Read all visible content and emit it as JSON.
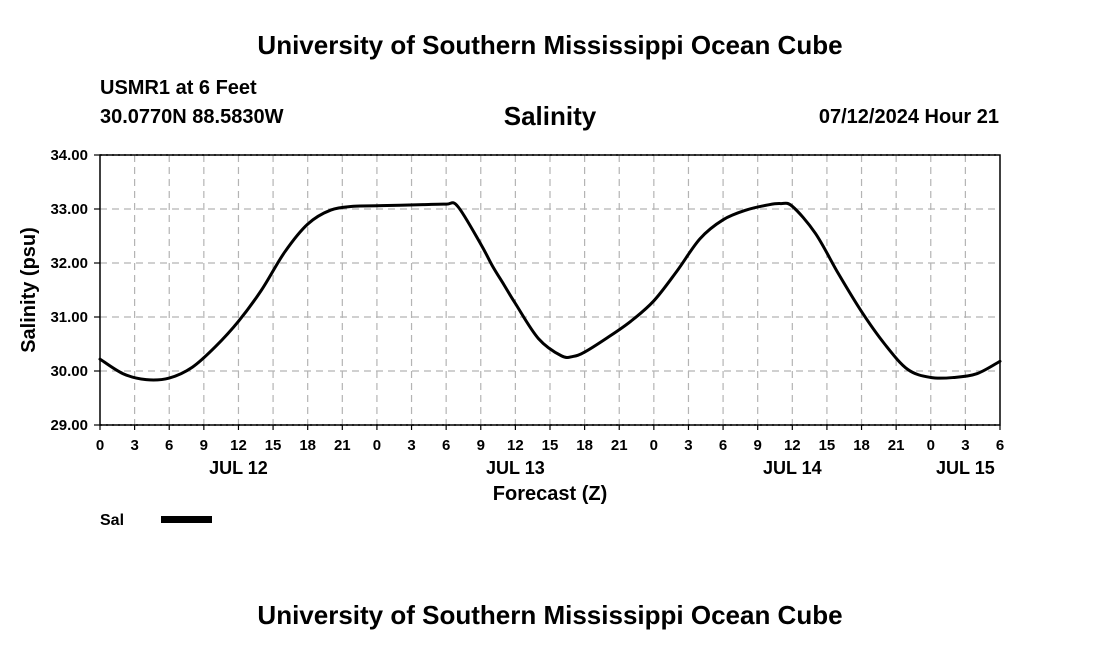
{
  "header": {
    "title": "University of Southern Mississippi Ocean Cube",
    "station": "USMR1 at 6 Feet",
    "coords": "30.0770N  88.5830W",
    "timestamp": "07/12/2024 Hour 21"
  },
  "footer": {
    "title": "University of Southern Mississippi Ocean Cube"
  },
  "legend": {
    "label": "Sal",
    "color": "#000000"
  },
  "chart_data": {
    "type": "line",
    "title": "Salinity",
    "xlabel": "Forecast (Z)",
    "ylabel": "Salinity (psu)",
    "xlim": [
      0,
      78
    ],
    "ylim": [
      29.0,
      34.0
    ],
    "grid": true,
    "y_ticks": [
      "29.00",
      "30.00",
      "31.00",
      "32.00",
      "33.00",
      "34.00"
    ],
    "x_tick_labels": [
      "0",
      "3",
      "6",
      "9",
      "12",
      "15",
      "18",
      "21",
      "0",
      "3",
      "6",
      "9",
      "12",
      "15",
      "18",
      "21",
      "0",
      "3",
      "6",
      "9",
      "12",
      "15",
      "18",
      "21",
      "0",
      "3",
      "6"
    ],
    "date_labels": [
      {
        "label": "JUL 12",
        "hour": 12
      },
      {
        "label": "JUL 13",
        "hour": 36
      },
      {
        "label": "JUL 14",
        "hour": 60
      },
      {
        "label": "JUL 15",
        "hour": 75
      }
    ],
    "series": [
      {
        "name": "Sal",
        "x": [
          0,
          2,
          4,
          6,
          8,
          10,
          12,
          14,
          16,
          18,
          20,
          22,
          24,
          26,
          28,
          30,
          31,
          33,
          34,
          35,
          36,
          38,
          40,
          41,
          42,
          44,
          46,
          48,
          50,
          52,
          54,
          56,
          58,
          59,
          60,
          62,
          64,
          66,
          68,
          70,
          72,
          74,
          76,
          78
        ],
        "values": [
          30.22,
          29.95,
          29.84,
          29.87,
          30.07,
          30.45,
          30.92,
          31.5,
          32.2,
          32.72,
          32.98,
          33.05,
          33.06,
          33.07,
          33.08,
          33.09,
          33.05,
          32.35,
          31.95,
          31.6,
          31.25,
          30.6,
          30.28,
          30.27,
          30.35,
          30.62,
          30.92,
          31.3,
          31.85,
          32.45,
          32.8,
          32.98,
          33.08,
          33.1,
          33.05,
          32.55,
          31.8,
          31.1,
          30.5,
          30.03,
          29.88,
          29.88,
          29.95,
          30.18
        ]
      }
    ]
  }
}
